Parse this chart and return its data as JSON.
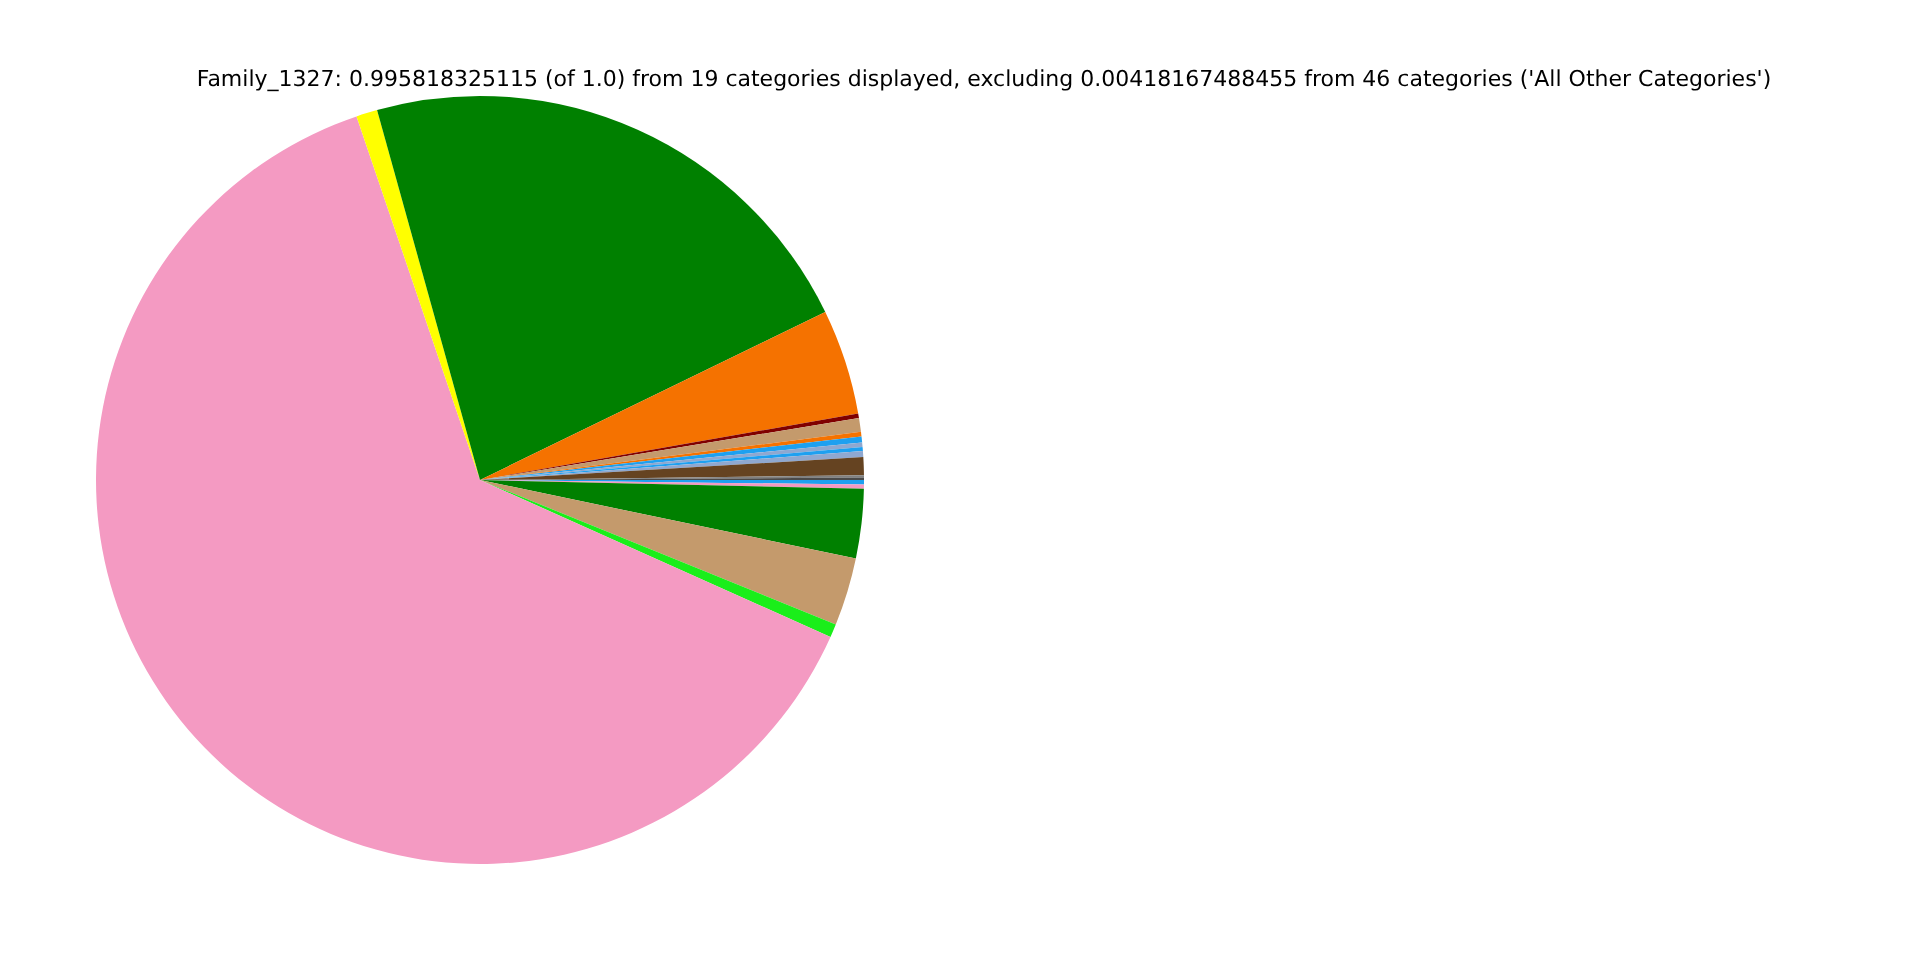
{
  "chart_data": {
    "type": "pie",
    "title": "Family_1327: 0.995818325115 (of 1.0) from 19 categories displayed, excluding 0.00418167488455 from 46 categories ('All Other Categories')",
    "categories": [
      null,
      null,
      null,
      null,
      null,
      null,
      null,
      null,
      null,
      null,
      null,
      null,
      null,
      null,
      null,
      null,
      null,
      null,
      null
    ],
    "values": [
      0.19,
      0.17,
      2.92,
      2.86,
      0.56,
      63.09,
      0.89,
      22.11,
      4.44,
      0.19,
      0.58,
      0.19,
      0.25,
      0.19,
      0.17,
      0.25,
      0.75,
      0.1,
      0.1
    ],
    "colors": [
      "#1ea0f0",
      "#f49ac2",
      "#008000",
      "#c49a6c",
      "#1aee1a",
      "#f49ac2",
      "#ffff00",
      "#008000",
      "#f57200",
      "#800000",
      "#c49a6c",
      "#f57200",
      "#1ea0f0",
      "#8fa8d0",
      "#1ea0f0",
      "#8fa8d0",
      "#654321",
      "#808080",
      "#4a4a4a"
    ],
    "legend": false
  }
}
